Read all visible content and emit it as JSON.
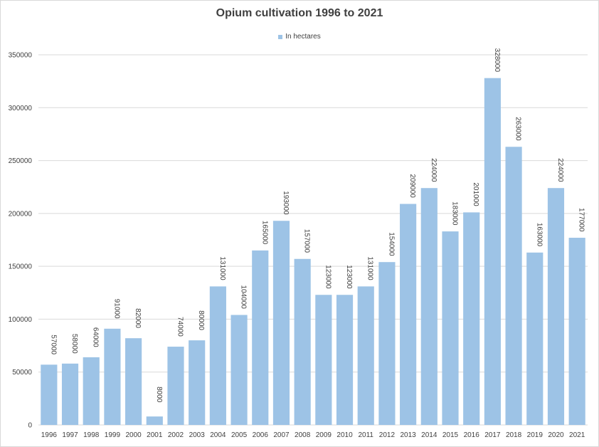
{
  "chart_data": {
    "type": "bar",
    "title": "Opium cultivation 1996 to 2021",
    "series": [
      {
        "name": "In hectares",
        "color": "#9dc3e6",
        "values": [
          57000,
          58000,
          64000,
          91000,
          82000,
          8000,
          74000,
          80000,
          131000,
          104000,
          165000,
          193000,
          157000,
          123000,
          123000,
          131000,
          154000,
          209000,
          224000,
          183000,
          201000,
          328000,
          263000,
          163000,
          224000,
          177000
        ]
      }
    ],
    "categories": [
      "1996",
      "1997",
      "1998",
      "1999",
      "2000",
      "2001",
      "2002",
      "2003",
      "2004",
      "2005",
      "2006",
      "2007",
      "2008",
      "2009",
      "2010",
      "2011",
      "2012",
      "2013",
      "2014",
      "2015",
      "2016",
      "2017",
      "2018",
      "2019",
      "2020",
      "2021"
    ],
    "ylim": [
      0,
      350000
    ],
    "yticks": [
      "0",
      "50000",
      "100000",
      "150000",
      "200000",
      "250000",
      "300000",
      "350000"
    ],
    "grid": true,
    "legend_position": "top"
  }
}
